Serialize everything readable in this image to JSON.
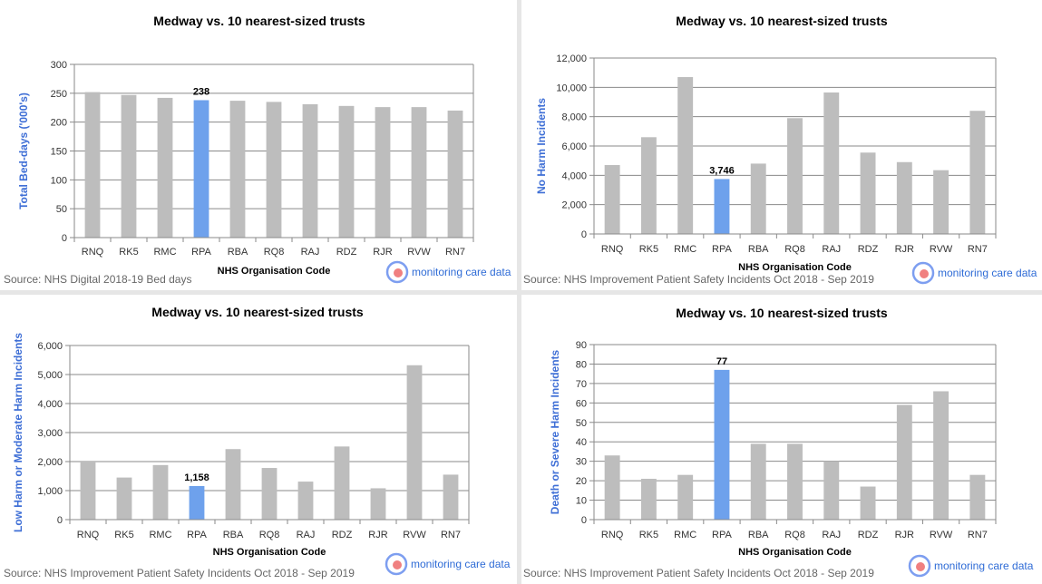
{
  "colors": {
    "bar": "#bdbdbd",
    "highlight": "#6ea1ec",
    "grid": "#8a8a8a",
    "brand": "#2e6bd6",
    "ring": "#7d9ef0",
    "dot": "#f08080"
  },
  "brand_label": "monitoring care data",
  "brand_icon": "monitoring-care-data-logo-icon",
  "chart_data": [
    {
      "type": "bar",
      "title": "Medway vs. 10 nearest-sized trusts",
      "xlabel": "NHS Organisation Code",
      "ylabel": "Total Bed-days ('000's)",
      "categories": [
        "RNQ",
        "RK5",
        "RMC",
        "RPA",
        "RBA",
        "RQ8",
        "RAJ",
        "RDZ",
        "RJR",
        "RVW",
        "RN7"
      ],
      "values": [
        252,
        247,
        242,
        238,
        237,
        235,
        231,
        228,
        226,
        226,
        220
      ],
      "highlight_index": 3,
      "highlight_label": "238",
      "ylim": [
        0,
        300
      ],
      "yticks": [
        "0",
        "50",
        "100",
        "150",
        "200",
        "250",
        "300"
      ],
      "source": "Source: NHS Digital 2018-19 Bed days"
    },
    {
      "type": "bar",
      "title": "Medway vs. 10 nearest-sized trusts",
      "xlabel": "NHS Organisation Code",
      "ylabel": "No Harm Incidents",
      "categories": [
        "RNQ",
        "RK5",
        "RMC",
        "RPA",
        "RBA",
        "RQ8",
        "RAJ",
        "RDZ",
        "RJR",
        "RVW",
        "RN7"
      ],
      "values": [
        4700,
        6600,
        10700,
        3746,
        4800,
        7900,
        9650,
        5550,
        4900,
        4350,
        8400
      ],
      "highlight_index": 3,
      "highlight_label": "3,746",
      "ylim": [
        0,
        12000
      ],
      "yticks": [
        "0",
        "2,000",
        "4,000",
        "6,000",
        "8,000",
        "10,000",
        "12,000"
      ],
      "source": "Source: NHS Improvement Patient Safety Incidents Oct 2018 - Sep 2019"
    },
    {
      "type": "bar",
      "title": "Medway vs. 10 nearest-sized trusts",
      "xlabel": "NHS Organisation Code",
      "ylabel": "Low Harm or Moderate Harm Incidents",
      "categories": [
        "RNQ",
        "RK5",
        "RMC",
        "RPA",
        "RBA",
        "RQ8",
        "RAJ",
        "RDZ",
        "RJR",
        "RVW",
        "RN7"
      ],
      "values": [
        2000,
        1450,
        1880,
        1158,
        2430,
        1780,
        1310,
        2520,
        1080,
        5320,
        1550
      ],
      "highlight_index": 3,
      "highlight_label": "1,158",
      "ylim": [
        0,
        6000
      ],
      "yticks": [
        "0",
        "1,000",
        "2,000",
        "3,000",
        "4,000",
        "5,000",
        "6,000"
      ],
      "source": "Source: NHS Improvement Patient Safety Incidents Oct 2018 - Sep 2019"
    },
    {
      "type": "bar",
      "title": "Medway vs. 10 nearest-sized trusts",
      "xlabel": "NHS Organisation Code",
      "ylabel": "Death or Severe Harm Incidents",
      "categories": [
        "RNQ",
        "RK5",
        "RMC",
        "RPA",
        "RBA",
        "RQ8",
        "RAJ",
        "RDZ",
        "RJR",
        "RVW",
        "RN7"
      ],
      "values": [
        33,
        21,
        23,
        77,
        39,
        39,
        30,
        17,
        59,
        66,
        23
      ],
      "highlight_index": 3,
      "highlight_label": "77",
      "ylim": [
        0,
        90
      ],
      "yticks": [
        "0",
        "10",
        "20",
        "30",
        "40",
        "50",
        "60",
        "70",
        "80",
        "90"
      ],
      "source": "Source: NHS Improvement Patient Safety Incidents Oct 2018 - Sep 2019"
    }
  ]
}
